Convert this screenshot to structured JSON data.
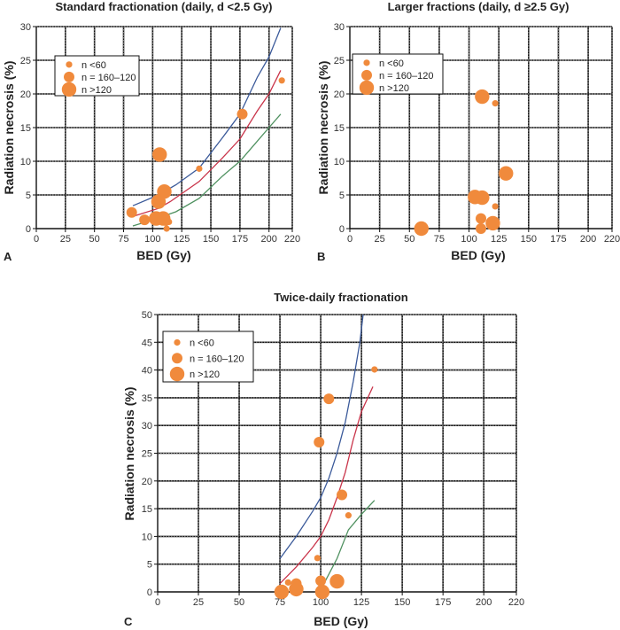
{
  "colors": {
    "point": "#f08a3c",
    "curve_upper": "#3b5a9a",
    "curve_middle": "#c9344a",
    "curve_lower": "#4f9160",
    "grid": "#111111"
  },
  "legend": {
    "entries": [
      {
        "label": "n <60",
        "size": "small"
      },
      {
        "label": "n = 160–120",
        "size": "medium"
      },
      {
        "label": "n >120",
        "size": "large"
      }
    ]
  },
  "chart_data": [
    {
      "panel": "A",
      "type": "scatter",
      "title": "Standard fractionation (daily, d <2.5 Gy)",
      "xlabel": "BED (Gy)",
      "ylabel": "Radiation necrosis (%)",
      "xlim": [
        0,
        220
      ],
      "ylim": [
        0,
        30
      ],
      "xticks": [
        "0",
        "25",
        "50",
        "75",
        "100",
        "125",
        "150",
        "175",
        "200",
        "220"
      ],
      "xtick_values": [
        0,
        25,
        50,
        75,
        100,
        125,
        150,
        175,
        200,
        220
      ],
      "yticks": [
        "0",
        "5",
        "10",
        "15",
        "20",
        "25",
        "30"
      ],
      "ytick_values": [
        0,
        5,
        10,
        15,
        20,
        25,
        30
      ],
      "grid": true,
      "legend_position": "upper-left",
      "points": [
        {
          "x": 82,
          "y": 2.4,
          "size": "medium"
        },
        {
          "x": 93,
          "y": 1.3,
          "size": "medium"
        },
        {
          "x": 103,
          "y": 1.5,
          "size": "large"
        },
        {
          "x": 105,
          "y": 4.0,
          "size": "large"
        },
        {
          "x": 106,
          "y": 11.0,
          "size": "large"
        },
        {
          "x": 110,
          "y": 5.5,
          "size": "large"
        },
        {
          "x": 109,
          "y": 1.5,
          "size": "large"
        },
        {
          "x": 111,
          "y": 1.2,
          "size": "medium"
        },
        {
          "x": 114,
          "y": 1.0,
          "size": "small"
        },
        {
          "x": 112,
          "y": 0.0,
          "size": "small"
        },
        {
          "x": 140,
          "y": 8.9,
          "size": "small"
        },
        {
          "x": 177,
          "y": 17.0,
          "size": "medium"
        },
        {
          "x": 211,
          "y": 22.0,
          "size": "small"
        }
      ],
      "curves": [
        {
          "name": "upper",
          "points": [
            [
              83,
              3.4
            ],
            [
              105,
              5.0
            ],
            [
              120,
              6.5
            ],
            [
              140,
              9.0
            ],
            [
              160,
              13.5
            ],
            [
              175,
              17.0
            ],
            [
              190,
              22.5
            ],
            [
              200,
              25.5
            ],
            [
              210,
              29.8
            ]
          ]
        },
        {
          "name": "middle",
          "points": [
            [
              83,
              1.8
            ],
            [
              105,
              3.0
            ],
            [
              115,
              4.0
            ],
            [
              140,
              7.0
            ],
            [
              160,
              10.5
            ],
            [
              175,
              13.3
            ],
            [
              190,
              17.5
            ],
            [
              200,
              20.0
            ],
            [
              210,
              23.5
            ]
          ]
        },
        {
          "name": "lower",
          "points": [
            [
              83,
              0.4
            ],
            [
              100,
              1.3
            ],
            [
              120,
              2.5
            ],
            [
              140,
              4.5
            ],
            [
              160,
              7.8
            ],
            [
              175,
              10.0
            ],
            [
              190,
              13.0
            ],
            [
              200,
              15.0
            ],
            [
              210,
              17.0
            ]
          ]
        }
      ]
    },
    {
      "panel": "B",
      "type": "scatter",
      "title": "Larger fractions (daily, d ≥2.5 Gy)",
      "xlabel": "BED (Gy)",
      "ylabel": "Radiation necrosis (%)",
      "xlim": [
        0,
        220
      ],
      "ylim": [
        0,
        30
      ],
      "xticks": [
        "0",
        "25",
        "50",
        "75",
        "100",
        "125",
        "150",
        "175",
        "200",
        "220"
      ],
      "xtick_values": [
        0,
        25,
        50,
        75,
        100,
        125,
        150,
        175,
        200,
        220
      ],
      "yticks": [
        "0",
        "5",
        "10",
        "15",
        "20",
        "25",
        "30"
      ],
      "ytick_values": [
        0,
        5,
        10,
        15,
        20,
        25,
        30
      ],
      "grid": true,
      "legend_position": "upper-left",
      "points": [
        {
          "x": 60,
          "y": 0.0,
          "size": "large"
        },
        {
          "x": 105,
          "y": 4.7,
          "size": "large"
        },
        {
          "x": 111,
          "y": 4.6,
          "size": "large"
        },
        {
          "x": 111,
          "y": 19.6,
          "size": "large"
        },
        {
          "x": 122,
          "y": 18.6,
          "size": "small"
        },
        {
          "x": 131,
          "y": 8.2,
          "size": "large"
        },
        {
          "x": 122,
          "y": 3.3,
          "size": "small"
        },
        {
          "x": 110,
          "y": 1.5,
          "size": "medium"
        },
        {
          "x": 110,
          "y": 0.0,
          "size": "medium"
        },
        {
          "x": 120,
          "y": 0.8,
          "size": "large"
        }
      ],
      "curves": []
    },
    {
      "panel": "C",
      "type": "scatter",
      "title": "Twice-daily fractionation",
      "xlabel": "BED (Gy)",
      "ylabel": "Radiation necrosis (%)",
      "xlim": [
        0,
        220
      ],
      "ylim": [
        0,
        50
      ],
      "xticks": [
        "0",
        "25",
        "50",
        "75",
        "100",
        "125",
        "150",
        "175",
        "200",
        "220"
      ],
      "xtick_values": [
        0,
        25,
        50,
        75,
        100,
        125,
        150,
        175,
        200,
        220
      ],
      "yticks": [
        "0",
        "5",
        "10",
        "15",
        "20",
        "25",
        "30",
        "35",
        "40",
        "45",
        "50"
      ],
      "ytick_values": [
        0,
        5,
        10,
        15,
        20,
        25,
        30,
        35,
        40,
        45,
        50
      ],
      "grid": true,
      "legend_position": "upper-left",
      "points": [
        {
          "x": 76,
          "y": 0.0,
          "size": "large"
        },
        {
          "x": 80,
          "y": 1.7,
          "size": "small"
        },
        {
          "x": 85,
          "y": 1.5,
          "size": "medium"
        },
        {
          "x": 85,
          "y": 0.5,
          "size": "large"
        },
        {
          "x": 98,
          "y": 6.1,
          "size": "small"
        },
        {
          "x": 99,
          "y": 27.0,
          "size": "medium"
        },
        {
          "x": 100,
          "y": 2.0,
          "size": "medium"
        },
        {
          "x": 101,
          "y": 0.0,
          "size": "large"
        },
        {
          "x": 105,
          "y": 34.8,
          "size": "medium"
        },
        {
          "x": 110,
          "y": 1.9,
          "size": "large"
        },
        {
          "x": 113,
          "y": 17.5,
          "size": "medium"
        },
        {
          "x": 117,
          "y": 13.8,
          "size": "small"
        },
        {
          "x": 133,
          "y": 40.1,
          "size": "small"
        }
      ],
      "curves": [
        {
          "name": "upper",
          "points": [
            [
              75,
              6.0
            ],
            [
              85,
              10.0
            ],
            [
              95,
              14.5
            ],
            [
              100,
              17.0
            ],
            [
              105,
              20.5
            ],
            [
              110,
              25.0
            ],
            [
              115,
              30.5
            ],
            [
              120,
              38.0
            ],
            [
              124,
              45.0
            ],
            [
              126,
              50.0
            ]
          ]
        },
        {
          "name": "middle",
          "points": [
            [
              75,
              1.5
            ],
            [
              85,
              4.5
            ],
            [
              95,
              8.0
            ],
            [
              100,
              10.0
            ],
            [
              105,
              13.0
            ],
            [
              110,
              17.0
            ],
            [
              115,
              21.5
            ],
            [
              120,
              27.5
            ],
            [
              125,
              32.5
            ],
            [
              132,
              37.0
            ]
          ]
        },
        {
          "name": "lower",
          "points": [
            [
              102,
              1.5
            ],
            [
              110,
              6.0
            ],
            [
              117,
              11.2
            ],
            [
              125,
              14.0
            ],
            [
              133,
              16.5
            ]
          ]
        }
      ]
    }
  ]
}
